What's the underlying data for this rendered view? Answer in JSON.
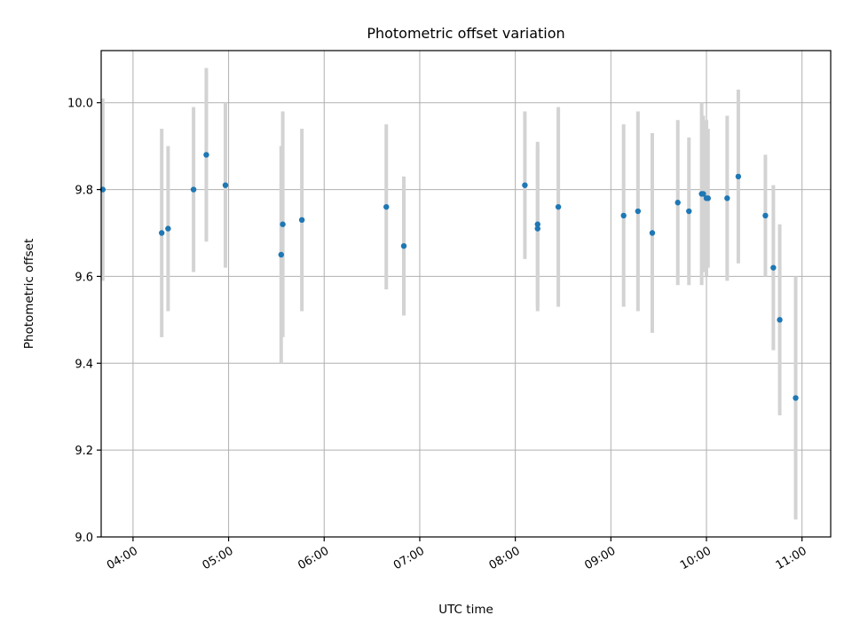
{
  "chart_data": {
    "type": "scatter",
    "title": "Photometric offset variation",
    "xlabel": "UTC time",
    "ylabel": "Photometric offset",
    "xlim": [
      "03:40",
      "11:18"
    ],
    "ylim": [
      9.0,
      10.12
    ],
    "grid": true,
    "x_ticks": [
      "04:00",
      "05:00",
      "06:00",
      "07:00",
      "08:00",
      "09:00",
      "10:00",
      "11:00"
    ],
    "y_ticks": [
      "9.0",
      "9.2",
      "9.4",
      "9.6",
      "9.8",
      "10.0"
    ],
    "marker_color": "#1f77b4",
    "errorbar_color": "#d3d3d3",
    "points": [
      {
        "t": "03:41",
        "y": 9.8,
        "err": 0.21
      },
      {
        "t": "04:18",
        "y": 9.7,
        "err": 0.24
      },
      {
        "t": "04:22",
        "y": 9.71,
        "err": 0.19
      },
      {
        "t": "04:38",
        "y": 9.8,
        "err": 0.19
      },
      {
        "t": "04:46",
        "y": 9.88,
        "err": 0.2
      },
      {
        "t": "04:58",
        "y": 9.81,
        "err": 0.19
      },
      {
        "t": "05:33",
        "y": 9.65,
        "err": 0.25
      },
      {
        "t": "05:34",
        "y": 9.72,
        "err": 0.26
      },
      {
        "t": "05:46",
        "y": 9.73,
        "err": 0.21
      },
      {
        "t": "06:39",
        "y": 9.76,
        "err": 0.19
      },
      {
        "t": "06:50",
        "y": 9.67,
        "err": 0.16
      },
      {
        "t": "08:06",
        "y": 9.81,
        "err": 0.17
      },
      {
        "t": "08:14",
        "y": 9.72,
        "err": 0.19
      },
      {
        "t": "08:14",
        "y": 9.71,
        "err": 0.19
      },
      {
        "t": "08:27",
        "y": 9.76,
        "err": 0.23
      },
      {
        "t": "09:08",
        "y": 9.74,
        "err": 0.21
      },
      {
        "t": "09:17",
        "y": 9.75,
        "err": 0.23
      },
      {
        "t": "09:26",
        "y": 9.7,
        "err": 0.23
      },
      {
        "t": "09:42",
        "y": 9.77,
        "err": 0.19
      },
      {
        "t": "09:49",
        "y": 9.75,
        "err": 0.17
      },
      {
        "t": "09:57",
        "y": 9.79,
        "err": 0.21
      },
      {
        "t": "09:58",
        "y": 9.79,
        "err": 0.18
      },
      {
        "t": "10:00",
        "y": 9.78,
        "err": 0.18
      },
      {
        "t": "10:01",
        "y": 9.78,
        "err": 0.16
      },
      {
        "t": "10:13",
        "y": 9.78,
        "err": 0.19
      },
      {
        "t": "10:20",
        "y": 9.83,
        "err": 0.2
      },
      {
        "t": "10:37",
        "y": 9.74,
        "err": 0.14
      },
      {
        "t": "10:42",
        "y": 9.62,
        "err": 0.19
      },
      {
        "t": "10:46",
        "y": 9.5,
        "err": 0.22
      },
      {
        "t": "10:56",
        "y": 9.32,
        "err": 0.28
      }
    ]
  }
}
